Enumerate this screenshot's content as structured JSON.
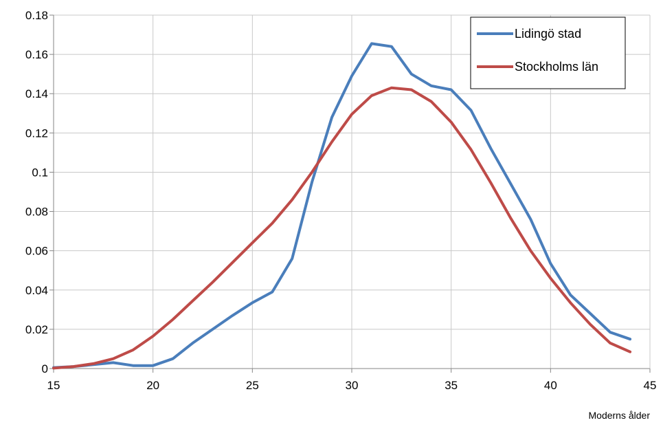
{
  "chart_data": {
    "type": "line",
    "title": "",
    "xlabel": "Moderns ålder",
    "ylabel": "",
    "xlim": [
      15,
      45
    ],
    "ylim": [
      0,
      0.18
    ],
    "x_ticks": [
      "15",
      "20",
      "25",
      "30",
      "35",
      "40",
      "45"
    ],
    "y_ticks": [
      "0",
      "0.02",
      "0.04",
      "0.06",
      "0.08",
      "0.1",
      "0.12",
      "0.14",
      "0.16",
      "0.18"
    ],
    "grid": true,
    "legend_position": "top-right",
    "series": [
      {
        "name": "Lidingö stad",
        "color": "#4A7EBB",
        "x": [
          15,
          16,
          17,
          18,
          19,
          20,
          21,
          22,
          23,
          24,
          25,
          26,
          27,
          28,
          29,
          30,
          31,
          32,
          33,
          34,
          35,
          36,
          37,
          38,
          39,
          40,
          41,
          42,
          43,
          44
        ],
        "y": [
          0.0005,
          0.001,
          0.002,
          0.003,
          0.0015,
          0.0015,
          0.005,
          0.013,
          0.02,
          0.027,
          0.0335,
          0.039,
          0.056,
          0.095,
          0.128,
          0.149,
          0.1655,
          0.164,
          0.15,
          0.144,
          0.142,
          0.1315,
          0.112,
          0.094,
          0.076,
          0.0535,
          0.0375,
          0.028,
          0.0185,
          0.015
        ]
      },
      {
        "name": "Stockholms län",
        "color": "#BE4B48",
        "x": [
          15,
          16,
          17,
          18,
          19,
          20,
          21,
          22,
          23,
          24,
          25,
          26,
          27,
          28,
          29,
          30,
          31,
          32,
          33,
          34,
          35,
          36,
          37,
          38,
          39,
          40,
          41,
          42,
          43,
          44
        ],
        "y": [
          0.0002,
          0.001,
          0.0025,
          0.005,
          0.0095,
          0.0165,
          0.025,
          0.0345,
          0.044,
          0.054,
          0.064,
          0.074,
          0.086,
          0.1,
          0.1155,
          0.1295,
          0.139,
          0.143,
          0.142,
          0.136,
          0.1255,
          0.1115,
          0.0945,
          0.0765,
          0.06,
          0.046,
          0.0335,
          0.0225,
          0.013,
          0.0085
        ]
      }
    ]
  }
}
